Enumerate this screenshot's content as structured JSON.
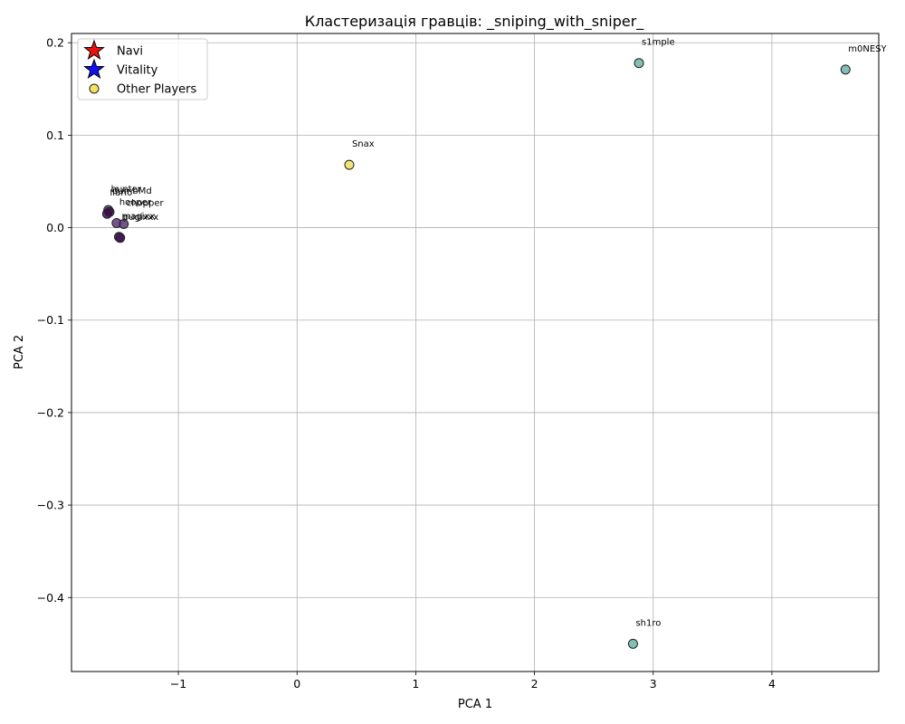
{
  "chart_data": {
    "type": "scatter",
    "title": "Кластеризація гравців: _sniping_with_sniper_",
    "xlabel": "PCA 1",
    "ylabel": "PCA 2",
    "xlim": [
      -1.9,
      4.9
    ],
    "ylim": [
      -0.48,
      0.21
    ],
    "x_ticks": [
      -1,
      0,
      1,
      2,
      3,
      4
    ],
    "x_tick_labels": [
      "−1",
      "0",
      "1",
      "2",
      "3",
      "4"
    ],
    "y_ticks": [
      0.2,
      0.1,
      0.0,
      -0.1,
      -0.2,
      -0.3,
      -0.4
    ],
    "y_tick_labels": [
      "0.2",
      "0.1",
      "0.0",
      "−0.1",
      "−0.2",
      "−0.3",
      "−0.4"
    ],
    "grid": true,
    "legend_position": "top-left",
    "legend": [
      {
        "label": "Navi",
        "marker": "star",
        "color": "#e8130f"
      },
      {
        "label": "Vitality",
        "marker": "star",
        "color": "#1010ee"
      },
      {
        "label": "Other Players",
        "marker": "circle",
        "color": "#f5e35e"
      }
    ],
    "cluster_colors": {
      "0": "#3b0f4e",
      "1": "#5a3a78",
      "2": "#6db3aa",
      "3": "#f0e05a"
    },
    "points": [
      {
        "name": "s1mple",
        "x": 2.88,
        "y": 0.178,
        "color": "#6db3aa"
      },
      {
        "name": "m0NESY",
        "x": 4.62,
        "y": 0.171,
        "color": "#6db3aa"
      },
      {
        "name": "Snax",
        "x": 0.44,
        "y": 0.068,
        "color": "#f0e05a"
      },
      {
        "name": "hunter",
        "x": -1.59,
        "y": 0.019,
        "color": "#5a3a78"
      },
      {
        "name": "dumbMd",
        "x": -1.58,
        "y": 0.017,
        "color": "#3b0f4e"
      },
      {
        "name": "Ilario",
        "x": -1.6,
        "y": 0.015,
        "color": "#3b0f4e"
      },
      {
        "name": "hooper",
        "x": -1.52,
        "y": 0.005,
        "color": "#5a3a78"
      },
      {
        "name": "chopper",
        "x": -1.46,
        "y": 0.004,
        "color": "#5a3a78"
      },
      {
        "name": "magixx",
        "x": -1.5,
        "y": -0.01,
        "color": "#5a3a78"
      },
      {
        "name": "pugixxx",
        "x": -1.49,
        "y": -0.011,
        "color": "#3b0f4e"
      },
      {
        "name": "sh1ro",
        "x": 2.83,
        "y": -0.45,
        "color": "#6db3aa"
      }
    ],
    "labels": [
      {
        "text": "s1mple",
        "x": 2.88,
        "y": 0.178
      },
      {
        "text": "m0NESY",
        "x": 4.62,
        "y": 0.171
      },
      {
        "text": "Snax",
        "x": 0.44,
        "y": 0.068
      },
      {
        "text": "hunter",
        "x": -1.59,
        "y": 0.019
      },
      {
        "text": "dumbMd",
        "x": -1.58,
        "y": 0.017
      },
      {
        "text": "Ilario",
        "x": -1.6,
        "y": 0.015
      },
      {
        "text": "hooper",
        "x": -1.52,
        "y": 0.005
      },
      {
        "text": "chopper",
        "x": -1.46,
        "y": 0.004
      },
      {
        "text": "magixx",
        "x": -1.5,
        "y": -0.01
      },
      {
        "text": "pugixxx",
        "x": -1.49,
        "y": -0.011
      },
      {
        "text": "sh1ro",
        "x": 2.83,
        "y": -0.45
      }
    ]
  }
}
